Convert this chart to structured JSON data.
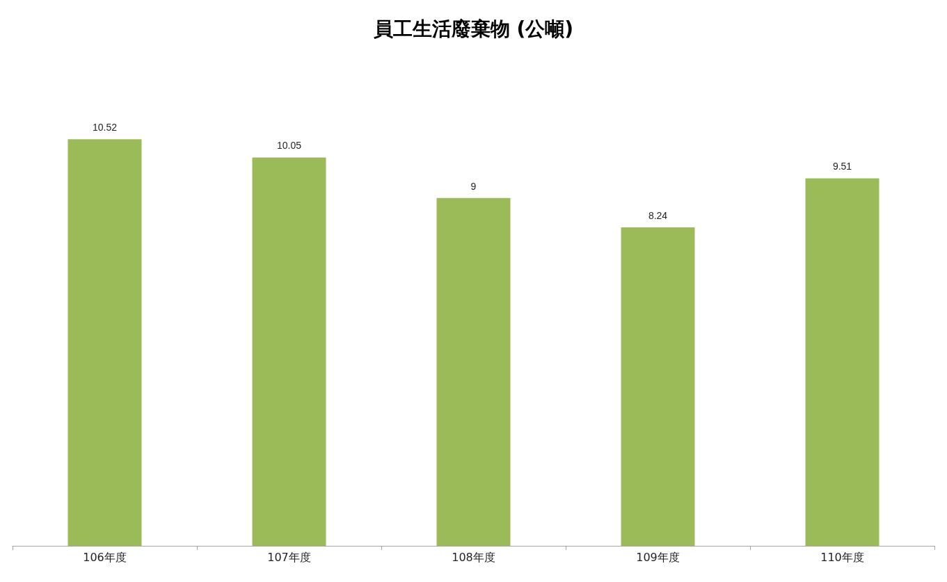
{
  "chart_data": {
    "type": "bar",
    "title": "員工生活廢棄物 (公噸)",
    "categories": [
      "106年度",
      "107年度",
      "108年度",
      "109年度",
      "110年度"
    ],
    "values": [
      10.52,
      10.05,
      9,
      8.24,
      9.51
    ],
    "color": "#9bbb59",
    "data_labels": true,
    "grid": false
  }
}
